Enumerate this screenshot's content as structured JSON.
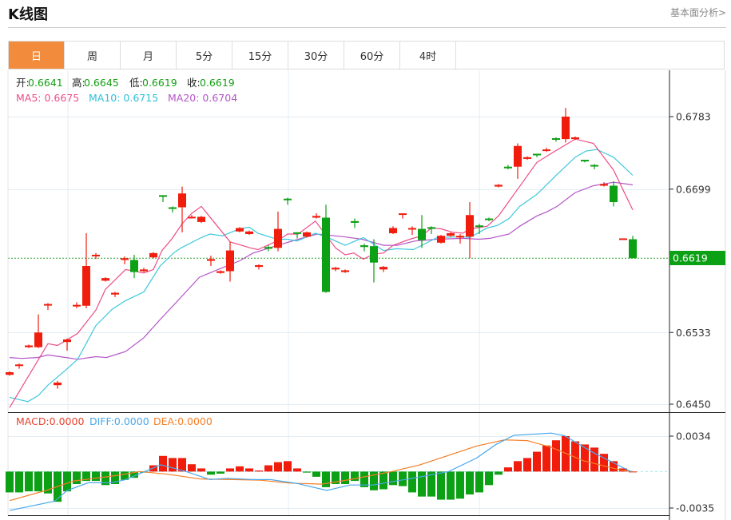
{
  "header": {
    "title": "K线图",
    "link": "基本面分析>"
  },
  "tabs": [
    "日",
    "周",
    "月",
    "5分",
    "15分",
    "30分",
    "60分",
    "4时"
  ],
  "active_tab": 0,
  "legend": {
    "open_label": "开:",
    "open": "0.6641",
    "high_label": "高:",
    "high": "0.6645",
    "low_label": "低:",
    "low": "0.6619",
    "close_label": "收:",
    "close": "0.6619",
    "ma5": "MA5: 0.6675",
    "ma10": "MA10: 0.6715",
    "ma20": "MA20: 0.6704"
  },
  "macd_legend": {
    "macd": "MACD:0.0000",
    "diff": "DIFF:0.0000",
    "dea": "DEA:0.0000"
  },
  "colors": {
    "up": "#f01c0c",
    "down": "#0ca014",
    "ma5": "#ec4d88",
    "ma10": "#3cc8dc",
    "ma20": "#b455c8",
    "diff": "#4aa8ec",
    "dea": "#f57e26",
    "accent": "#f28c3c"
  },
  "chart_data": {
    "type": "candlestick",
    "price_axis": {
      "ticks": [
        "0.6783",
        "0.6699",
        "0.6533",
        "0.6450"
      ],
      "ylim": [
        0.645,
        0.6783
      ],
      "current": "0.6619"
    },
    "candles_ohlc": [
      [
        0.6484,
        0.6488,
        0.6483,
        0.6487
      ],
      [
        0.6496,
        0.6497,
        0.6491,
        0.6496
      ],
      [
        0.6516,
        0.6519,
        0.6515,
        0.6518
      ],
      [
        0.6516,
        0.6554,
        0.6515,
        0.6533
      ],
      [
        0.6565,
        0.6567,
        0.6559,
        0.6566
      ],
      [
        0.6472,
        0.6477,
        0.6468,
        0.6475
      ],
      [
        0.6522,
        0.6526,
        0.6512,
        0.6525
      ],
      [
        0.6564,
        0.6568,
        0.6561,
        0.6565
      ],
      [
        0.6564,
        0.6648,
        0.6561,
        0.661
      ],
      [
        0.6622,
        0.6625,
        0.6618,
        0.6623
      ],
      [
        0.6593,
        0.6597,
        0.6592,
        0.6596
      ],
      [
        0.6577,
        0.658,
        0.6574,
        0.6579
      ],
      [
        0.6617,
        0.6621,
        0.6612,
        0.6619
      ],
      [
        0.6617,
        0.6623,
        0.6596,
        0.6603
      ],
      [
        0.6604,
        0.6608,
        0.6603,
        0.6606
      ],
      [
        0.662,
        0.6626,
        0.6619,
        0.6625
      ],
      [
        0.6692,
        0.6692,
        0.6684,
        0.6691
      ],
      [
        0.6678,
        0.6679,
        0.6672,
        0.6677
      ],
      [
        0.6678,
        0.6702,
        0.6649,
        0.6694
      ],
      [
        0.6666,
        0.6669,
        0.6665,
        0.6667
      ],
      [
        0.6661,
        0.6668,
        0.666,
        0.6667
      ],
      [
        0.6616,
        0.6622,
        0.661,
        0.6618
      ],
      [
        0.6602,
        0.6605,
        0.6601,
        0.6604
      ],
      [
        0.6604,
        0.6638,
        0.6592,
        0.6628
      ],
      [
        0.665,
        0.6655,
        0.6649,
        0.6654
      ],
      [
        0.6647,
        0.6651,
        0.6646,
        0.665
      ],
      [
        0.6609,
        0.6612,
        0.6606,
        0.6611
      ],
      [
        0.6632,
        0.6634,
        0.6627,
        0.663
      ],
      [
        0.6631,
        0.6673,
        0.6627,
        0.6653
      ],
      [
        0.6688,
        0.6689,
        0.6681,
        0.6687
      ],
      [
        0.6649,
        0.6649,
        0.6642,
        0.6648
      ],
      [
        0.6644,
        0.665,
        0.6643,
        0.6649
      ],
      [
        0.6666,
        0.6671,
        0.6665,
        0.6668
      ],
      [
        0.6666,
        0.6681,
        0.6579,
        0.658
      ],
      [
        0.6606,
        0.6609,
        0.6604,
        0.6608
      ],
      [
        0.6603,
        0.6606,
        0.6602,
        0.6605
      ],
      [
        0.6662,
        0.6665,
        0.6654,
        0.666
      ],
      [
        0.6634,
        0.6636,
        0.6627,
        0.6632
      ],
      [
        0.6633,
        0.6641,
        0.6591,
        0.6614
      ],
      [
        0.6606,
        0.661,
        0.6603,
        0.6609
      ],
      [
        0.6648,
        0.6656,
        0.6647,
        0.6654
      ],
      [
        0.667,
        0.6671,
        0.6665,
        0.6671
      ],
      [
        0.6653,
        0.6656,
        0.6646,
        0.6654
      ],
      [
        0.6653,
        0.6669,
        0.6631,
        0.664
      ],
      [
        0.6655,
        0.6656,
        0.6647,
        0.6653
      ],
      [
        0.6637,
        0.6646,
        0.6636,
        0.6645
      ],
      [
        0.6645,
        0.6649,
        0.6644,
        0.6648
      ],
      [
        0.6643,
        0.6647,
        0.6636,
        0.6645
      ],
      [
        0.6644,
        0.6684,
        0.6619,
        0.6669
      ],
      [
        0.6657,
        0.6659,
        0.6647,
        0.6656
      ],
      [
        0.6665,
        0.6666,
        0.6662,
        0.6664
      ],
      [
        0.6702,
        0.6705,
        0.6701,
        0.6704
      ],
      [
        0.6725,
        0.6727,
        0.6722,
        0.6724
      ],
      [
        0.6725,
        0.6752,
        0.6711,
        0.6749
      ],
      [
        0.6734,
        0.6737,
        0.6733,
        0.6736
      ],
      [
        0.674,
        0.674,
        0.6736,
        0.6739
      ],
      [
        0.6744,
        0.6747,
        0.6742,
        0.6745
      ],
      [
        0.6758,
        0.6759,
        0.6754,
        0.6757
      ],
      [
        0.6757,
        0.6793,
        0.6753,
        0.6783
      ],
      [
        0.6757,
        0.676,
        0.6756,
        0.6759
      ],
      [
        0.6733,
        0.6733,
        0.673,
        0.6732
      ],
      [
        0.6727,
        0.6728,
        0.6722,
        0.6726
      ],
      [
        0.6703,
        0.6707,
        0.6702,
        0.6705
      ],
      [
        0.6703,
        0.6708,
        0.6679,
        0.6684
      ],
      [
        0.6641,
        0.6642,
        0.6641,
        0.6642
      ],
      [
        0.6641,
        0.6645,
        0.6619,
        0.6619
      ]
    ],
    "ma5": [
      [
        0,
        0.6446
      ],
      [
        4,
        0.652
      ],
      [
        5,
        0.6518
      ],
      [
        7.1,
        0.6532
      ],
      [
        9,
        0.6559
      ],
      [
        10,
        0.6583
      ],
      [
        12.1,
        0.6606
      ],
      [
        14,
        0.6602
      ],
      [
        15,
        0.6606
      ],
      [
        15.9,
        0.6628
      ],
      [
        16.9,
        0.6641
      ],
      [
        18,
        0.6659
      ],
      [
        19,
        0.6671
      ],
      [
        20,
        0.6679
      ],
      [
        23,
        0.6638
      ],
      [
        25.1,
        0.6631
      ],
      [
        25.9,
        0.6629
      ],
      [
        27.9,
        0.6639
      ],
      [
        29,
        0.6647
      ],
      [
        30.1,
        0.6647
      ],
      [
        31.9,
        0.6662
      ],
      [
        34,
        0.6631
      ],
      [
        35,
        0.6623
      ],
      [
        35.9,
        0.6625
      ],
      [
        36.9,
        0.6618
      ],
      [
        38,
        0.6624
      ],
      [
        39,
        0.6625
      ],
      [
        40,
        0.6634
      ],
      [
        41.75,
        0.6641
      ],
      [
        43,
        0.6645
      ],
      [
        44,
        0.6654
      ],
      [
        45,
        0.6653
      ],
      [
        46.25,
        0.6649
      ],
      [
        47.3,
        0.6648
      ],
      [
        48,
        0.6653
      ],
      [
        49.8,
        0.6656
      ],
      [
        51,
        0.6668
      ],
      [
        53,
        0.6699
      ],
      [
        55,
        0.673
      ],
      [
        56.75,
        0.6742
      ],
      [
        59,
        0.6757
      ],
      [
        60.9,
        0.6752
      ],
      [
        63,
        0.6721
      ],
      [
        65,
        0.6675
      ]
    ],
    "ma10": [
      [
        0,
        0.6458
      ],
      [
        1.9,
        0.6453
      ],
      [
        3,
        0.646
      ],
      [
        4,
        0.6472
      ],
      [
        5.9,
        0.649
      ],
      [
        7.1,
        0.6502
      ],
      [
        9,
        0.6541
      ],
      [
        10.7,
        0.656
      ],
      [
        12.1,
        0.657
      ],
      [
        14,
        0.658
      ],
      [
        15.7,
        0.661
      ],
      [
        17.1,
        0.6625
      ],
      [
        17.9,
        0.6631
      ],
      [
        20,
        0.6643
      ],
      [
        20.9,
        0.6647
      ],
      [
        22.2,
        0.6645
      ],
      [
        24,
        0.6653
      ],
      [
        25,
        0.6655
      ],
      [
        25.9,
        0.6648
      ],
      [
        27.9,
        0.6641
      ],
      [
        29,
        0.6641
      ],
      [
        30,
        0.6639
      ],
      [
        31.9,
        0.6648
      ],
      [
        33.4,
        0.6642
      ],
      [
        35,
        0.6634
      ],
      [
        36.9,
        0.6643
      ],
      [
        39,
        0.6628
      ],
      [
        40.4,
        0.663
      ],
      [
        42.1,
        0.6629
      ],
      [
        43,
        0.6634
      ],
      [
        44.6,
        0.6643
      ],
      [
        47.3,
        0.6644
      ],
      [
        48,
        0.6643
      ],
      [
        49.8,
        0.6654
      ],
      [
        50.9,
        0.6657
      ],
      [
        52.1,
        0.6665
      ],
      [
        53.2,
        0.6679
      ],
      [
        55,
        0.6693
      ],
      [
        57.1,
        0.6716
      ],
      [
        59,
        0.6736
      ],
      [
        60.1,
        0.6743
      ],
      [
        61.25,
        0.6745
      ],
      [
        63,
        0.6736
      ],
      [
        65,
        0.6715
      ]
    ],
    "ma20": [
      [
        0,
        0.6504
      ],
      [
        1.25,
        0.6503
      ],
      [
        2.9,
        0.6504
      ],
      [
        4,
        0.6507
      ],
      [
        5.9,
        0.6504
      ],
      [
        7.1,
        0.6502
      ],
      [
        9,
        0.6505
      ],
      [
        10.1,
        0.6504
      ],
      [
        12.1,
        0.6511
      ],
      [
        14,
        0.6527
      ],
      [
        15.7,
        0.6548
      ],
      [
        17.9,
        0.6574
      ],
      [
        19.8,
        0.6597
      ],
      [
        21.75,
        0.6606
      ],
      [
        24,
        0.6616
      ],
      [
        25.4,
        0.6625
      ],
      [
        28,
        0.6634
      ],
      [
        30.1,
        0.6641
      ],
      [
        32.1,
        0.6647
      ],
      [
        34.8,
        0.6644
      ],
      [
        36.75,
        0.6641
      ],
      [
        39,
        0.6634
      ],
      [
        40.4,
        0.6634
      ],
      [
        42.3,
        0.6639
      ],
      [
        44.6,
        0.6641
      ],
      [
        47.3,
        0.6642
      ],
      [
        49,
        0.6641
      ],
      [
        50.1,
        0.6642
      ],
      [
        52.1,
        0.6647
      ],
      [
        53.2,
        0.6656
      ],
      [
        55,
        0.6668
      ],
      [
        56.1,
        0.6673
      ],
      [
        57.1,
        0.6679
      ],
      [
        59,
        0.6695
      ],
      [
        60.9,
        0.6703
      ],
      [
        63,
        0.6707
      ],
      [
        65,
        0.6704
      ]
    ],
    "macd_axis": {
      "ticks": [
        "0.0034",
        "-0.0035"
      ],
      "ylim": [
        -0.0035,
        0.0034
      ]
    },
    "macd_hist": [
      -0.002,
      -0.002,
      -0.0019,
      -0.0019,
      -0.0021,
      -0.0029,
      -0.0019,
      -0.0012,
      -0.0009,
      -0.0009,
      -0.0013,
      -0.0012,
      -0.0008,
      -0.0006,
      -0.0001,
      0.0006,
      0.0015,
      0.0013,
      0.0013,
      0.0007,
      0.0003,
      -0.0003,
      -0.0002,
      0.0003,
      0.0005,
      0.0003,
      0.0001,
      0.0006,
      0.0009,
      0.001,
      0.0003,
      -0.0001,
      -0.0005,
      -0.0015,
      -0.0012,
      -0.0012,
      -0.0009,
      -0.0015,
      -0.0018,
      -0.0017,
      -0.0013,
      -0.0014,
      -0.002,
      -0.0024,
      -0.0024,
      -0.0027,
      -0.0027,
      -0.0026,
      -0.0022,
      -0.002,
      -0.0013,
      -0.0003,
      0.0004,
      0.001,
      0.0013,
      0.0019,
      0.0025,
      0.003,
      0.0034,
      0.0029,
      0.0026,
      0.0023,
      0.0017,
      0.001,
      0.0003,
      0.0
    ],
    "diff": [
      [
        0,
        -0.00374
      ],
      [
        4.7,
        -0.00284
      ],
      [
        6,
        -0.00181
      ],
      [
        8.2,
        -0.00108
      ],
      [
        10.6,
        -0.00108
      ],
      [
        12.1,
        -0.00077
      ],
      [
        14.1,
        0
      ],
      [
        15.8,
        0.00065
      ],
      [
        18.4,
        0
      ],
      [
        20.9,
        -0.00077
      ],
      [
        22.8,
        -0.00065
      ],
      [
        25.3,
        -0.00077
      ],
      [
        27.2,
        -0.00077
      ],
      [
        30.1,
        -0.00116
      ],
      [
        33.1,
        -0.00181
      ],
      [
        35.5,
        -0.00129
      ],
      [
        37.9,
        -0.00129
      ],
      [
        42.8,
        -0.00052
      ],
      [
        45.8,
        0
      ],
      [
        48.7,
        0.00129
      ],
      [
        50.7,
        0.00258
      ],
      [
        52.6,
        0.00348
      ],
      [
        56.5,
        0.00369
      ],
      [
        57.9,
        0.00343
      ],
      [
        60.9,
        0.00181
      ],
      [
        64.8,
        0
      ]
    ],
    "dea": [
      [
        0,
        -0.00279
      ],
      [
        3.8,
        -0.00181
      ],
      [
        6.7,
        -0.0009
      ],
      [
        11.1,
        -0.00039
      ],
      [
        13.6,
        0
      ],
      [
        16.5,
        -0.00026
      ],
      [
        19.9,
        -0.00072
      ],
      [
        23.3,
        -0.00077
      ],
      [
        26.2,
        -0.00083
      ],
      [
        29.2,
        -0.00111
      ],
      [
        32.6,
        -0.00121
      ],
      [
        35.5,
        -0.00077
      ],
      [
        39.9,
        0
      ],
      [
        42.8,
        0.00065
      ],
      [
        45.8,
        0.00155
      ],
      [
        48.7,
        0.00245
      ],
      [
        51.6,
        0.00304
      ],
      [
        54,
        0.00297
      ],
      [
        56.5,
        0.00232
      ],
      [
        59.9,
        0.00103
      ],
      [
        63.8,
        0.00013
      ],
      [
        65,
        0
      ]
    ]
  }
}
